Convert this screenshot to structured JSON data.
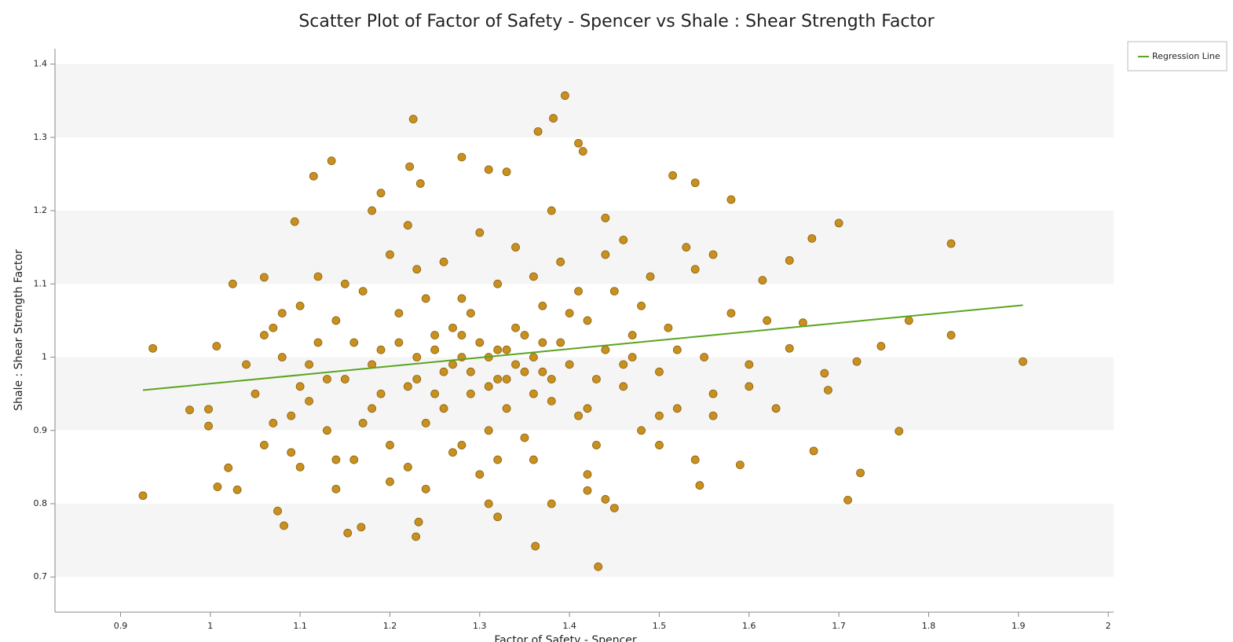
{
  "chart_data": {
    "type": "scatter",
    "title": "Scatter Plot of Factor of Safety - Spencer vs Shale : Shear Strength Factor",
    "x_label": "Factor of Safety - Spencer",
    "y_label": "Shale : Shear Strength Factor",
    "color": "#c8901e",
    "x": [
      0.925,
      0.936,
      0.977,
      0.998,
      0.998,
      1.007,
      1.008,
      1.02,
      1.025,
      1.03,
      1.06,
      1.075,
      1.082,
      1.094,
      1.115,
      1.135,
      1.153,
      1.168,
      1.19,
      1.222,
      1.226,
      1.229,
      1.232,
      1.234,
      1.28,
      1.31,
      1.33,
      1.365,
      1.382,
      1.395,
      1.41,
      1.415,
      1.362,
      1.432,
      1.31,
      1.32,
      1.38,
      1.515,
      1.54,
      1.58,
      1.7,
      1.825,
      1.778,
      1.825,
      1.905,
      1.747,
      1.72,
      1.767,
      1.724,
      1.71,
      1.672,
      1.688,
      1.684,
      1.645,
      1.63,
      1.59,
      1.545,
      1.56,
      1.6,
      1.615,
      1.66,
      1.67,
      1.645,
      1.45,
      1.44,
      1.42,
      1.05,
      1.06,
      1.07,
      1.08,
      1.09,
      1.1,
      1.11,
      1.12,
      1.13,
      1.14,
      1.15,
      1.16,
      1.17,
      1.18,
      1.19,
      1.2,
      1.21,
      1.22,
      1.23,
      1.24,
      1.25,
      1.26,
      1.27,
      1.28,
      1.29,
      1.3,
      1.31,
      1.32,
      1.33,
      1.34,
      1.35,
      1.36,
      1.37,
      1.38,
      1.39,
      1.4,
      1.41,
      1.42,
      1.43,
      1.44,
      1.45,
      1.46,
      1.47,
      1.48,
      1.49,
      1.5,
      1.51,
      1.52,
      1.53,
      1.55,
      1.04,
      1.06,
      1.08,
      1.1,
      1.12,
      1.14,
      1.16,
      1.18,
      1.2,
      1.22,
      1.24,
      1.26,
      1.28,
      1.3,
      1.32,
      1.34,
      1.36,
      1.38,
      1.4,
      1.42,
      1.44,
      1.46,
      1.48,
      1.5,
      1.52,
      1.54,
      1.56,
      1.58,
      1.6,
      1.62,
      1.07,
      1.11,
      1.15,
      1.19,
      1.23,
      1.27,
      1.31,
      1.35,
      1.39,
      1.43,
      1.47,
      1.25,
      1.29,
      1.33,
      1.37,
      1.41,
      1.21,
      1.17,
      1.13,
      1.09,
      1.28,
      1.32,
      1.36,
      1.26,
      1.34,
      1.22,
      1.38,
      1.44,
      1.18,
      1.42,
      1.24,
      1.14,
      1.3,
      1.36,
      1.2,
      1.1,
      1.5,
      1.54,
      1.46,
      1.56,
      1.29,
      1.31,
      1.27,
      1.33,
      1.25,
      1.35,
      1.23,
      1.37,
      1.28,
      1.32
    ],
    "values": [
      0.811,
      1.012,
      0.928,
      0.929,
      0.906,
      1.015,
      0.823,
      0.849,
      1.1,
      0.819,
      1.109,
      0.79,
      0.77,
      1.185,
      1.247,
      1.268,
      0.76,
      0.768,
      1.224,
      1.26,
      1.325,
      0.755,
      0.775,
      1.237,
      1.273,
      1.256,
      1.253,
      1.308,
      1.326,
      1.357,
      1.292,
      1.281,
      0.742,
      0.714,
      0.8,
      0.782,
      0.8,
      1.248,
      1.238,
      1.215,
      1.183,
      1.155,
      1.05,
      1.03,
      0.994,
      1.015,
      0.994,
      0.899,
      0.842,
      0.805,
      0.872,
      0.955,
      0.978,
      1.012,
      0.93,
      0.853,
      0.825,
      0.92,
      0.96,
      1.105,
      1.047,
      1.162,
      1.132,
      0.794,
      0.806,
      0.818,
      0.95,
      1.03,
      0.91,
      1.0,
      0.87,
      1.07,
      0.94,
      1.02,
      0.9,
      1.05,
      0.97,
      0.86,
      1.09,
      0.93,
      1.01,
      0.88,
      1.06,
      0.96,
      1.12,
      0.91,
      1.03,
      0.98,
      0.87,
      1.08,
      0.95,
      1.02,
      0.9,
      1.1,
      0.97,
      1.04,
      0.89,
      1.0,
      1.07,
      0.94,
      1.13,
      0.99,
      0.92,
      1.05,
      0.88,
      1.01,
      1.09,
      0.96,
      1.03,
      0.9,
      1.11,
      0.98,
      1.04,
      0.93,
      1.15,
      1.0,
      0.99,
      0.88,
      1.06,
      0.96,
      1.11,
      0.86,
      1.02,
      0.99,
      1.14,
      0.85,
      1.08,
      0.93,
      1.0,
      1.17,
      0.86,
      0.99,
      1.11,
      0.97,
      1.06,
      0.93,
      1.14,
      0.99,
      1.07,
      0.88,
      1.01,
      1.12,
      0.95,
      1.06,
      0.99,
      1.05,
      1.04,
      0.99,
      1.1,
      0.95,
      1.0,
      1.04,
      0.96,
      1.03,
      1.02,
      0.97,
      1.0,
      0.95,
      1.06,
      0.93,
      0.98,
      1.09,
      1.02,
      0.91,
      0.97,
      0.92,
      0.88,
      1.01,
      0.95,
      1.13,
      1.15,
      1.18,
      1.2,
      1.19,
      1.2,
      0.84,
      0.82,
      0.82,
      0.84,
      0.86,
      0.83,
      0.85,
      0.92,
      0.86,
      1.16,
      1.14,
      0.98,
      1.0,
      0.99,
      1.01,
      1.01,
      0.98,
      0.97,
      1.02,
      1.03,
      0.97
    ],
    "series": [
      {
        "name": "Regression Line",
        "color": "#5aa51e",
        "x": [
          0.925,
          1.905
        ],
        "values": [
          0.955,
          1.071
        ]
      }
    ],
    "xlim": [
      0.827,
      2.006
    ],
    "ylim": [
      0.652,
      1.421
    ],
    "xticks": [
      0.9,
      1,
      1.1,
      1.2,
      1.3,
      1.4,
      1.5,
      1.6,
      1.7,
      1.8,
      1.9,
      2
    ],
    "yticks": [
      0.7,
      0.8,
      0.9,
      1,
      1.1,
      1.2,
      1.3,
      1.4
    ],
    "legend": "top-right"
  }
}
